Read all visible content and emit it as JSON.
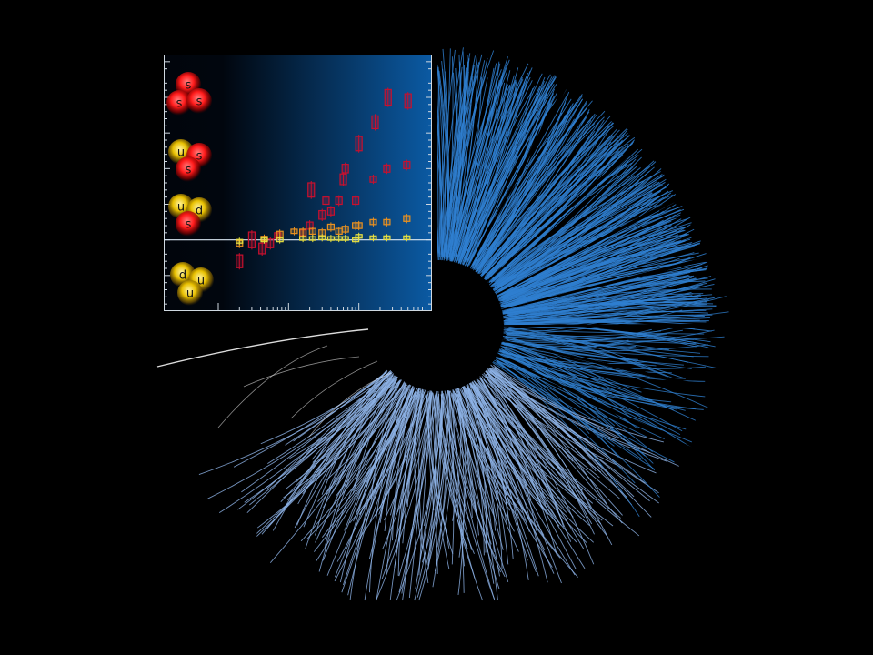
{
  "colors": {
    "background": "#000000",
    "track_fan": "#2f7fd0",
    "track_lower": "#8fb4e8",
    "track_white": "#e8e8e8",
    "plot_dark": "#01050c",
    "plot_light": "#0b5aa3",
    "baseline": "#d9e6f2",
    "series_strange": "#c8102e",
    "series_orange": "#e89020",
    "series_yellow": "#e8e040",
    "baryon_red": "#ff2020",
    "baryon_yellow": "#e8c000"
  },
  "baryons": [
    {
      "name": "sss",
      "quarks": [
        "s",
        "s",
        "s"
      ],
      "colors": [
        "red",
        "red",
        "red"
      ]
    },
    {
      "name": "uss",
      "quarks": [
        "u",
        "s",
        "s"
      ],
      "colors": [
        "yellow",
        "red",
        "red"
      ]
    },
    {
      "name": "uds",
      "quarks": [
        "u",
        "d",
        "s"
      ],
      "colors": [
        "yellow",
        "yellow",
        "red"
      ]
    },
    {
      "name": "udu",
      "quarks": [
        "d",
        "u",
        "u"
      ],
      "colors": [
        "yellow",
        "yellow",
        "yellow"
      ]
    }
  ],
  "chart_data": {
    "type": "scatter",
    "title": "",
    "xlabel": "",
    "ylabel": "",
    "x_scale": "log",
    "xlim": [
      1,
      1000
    ],
    "ylim": [
      -1.0,
      2.6
    ],
    "grid": false,
    "baseline_y": 0,
    "series": [
      {
        "color": "#c8102e",
        "points": [
          {
            "x": 2.0,
            "y": -0.3,
            "h": 0.18
          },
          {
            "x": 3.0,
            "y": 0.0,
            "h": 0.22
          },
          {
            "x": 4.2,
            "y": -0.12,
            "h": 0.15
          },
          {
            "x": 5.5,
            "y": -0.05,
            "h": 0.12
          },
          {
            "x": 7.0,
            "y": 0.06,
            "h": 0.08
          },
          {
            "x": 16,
            "y": 0.1,
            "h": 0.08
          },
          {
            "x": 20,
            "y": 0.2,
            "h": 0.1
          },
          {
            "x": 21,
            "y": 0.7,
            "h": 0.2
          },
          {
            "x": 30,
            "y": 0.35,
            "h": 0.12
          },
          {
            "x": 34,
            "y": 0.55,
            "h": 0.1
          },
          {
            "x": 40,
            "y": 0.4,
            "h": 0.1
          },
          {
            "x": 52,
            "y": 0.55,
            "h": 0.1
          },
          {
            "x": 60,
            "y": 0.85,
            "h": 0.15
          },
          {
            "x": 64,
            "y": 1.0,
            "h": 0.12
          },
          {
            "x": 90,
            "y": 0.55,
            "h": 0.1
          },
          {
            "x": 100,
            "y": 1.35,
            "h": 0.2
          },
          {
            "x": 160,
            "y": 0.85,
            "h": 0.08
          },
          {
            "x": 170,
            "y": 1.65,
            "h": 0.18
          },
          {
            "x": 250,
            "y": 1.0,
            "h": 0.1
          },
          {
            "x": 260,
            "y": 2.0,
            "h": 0.22
          },
          {
            "x": 480,
            "y": 1.05,
            "h": 0.1
          },
          {
            "x": 500,
            "y": 1.95,
            "h": 0.2
          }
        ]
      },
      {
        "color": "#e89020",
        "points": [
          {
            "x": 2.0,
            "y": -0.05,
            "h": 0.08
          },
          {
            "x": 4.5,
            "y": 0.02,
            "h": 0.06
          },
          {
            "x": 7.5,
            "y": 0.08,
            "h": 0.08
          },
          {
            "x": 12,
            "y": 0.12,
            "h": 0.06
          },
          {
            "x": 16,
            "y": 0.1,
            "h": 0.1
          },
          {
            "x": 22,
            "y": 0.12,
            "h": 0.08
          },
          {
            "x": 30,
            "y": 0.1,
            "h": 0.08
          },
          {
            "x": 40,
            "y": 0.18,
            "h": 0.08
          },
          {
            "x": 52,
            "y": 0.12,
            "h": 0.08
          },
          {
            "x": 64,
            "y": 0.15,
            "h": 0.08
          },
          {
            "x": 90,
            "y": 0.2,
            "h": 0.08
          },
          {
            "x": 100,
            "y": 0.2,
            "h": 0.08
          },
          {
            "x": 160,
            "y": 0.25,
            "h": 0.07
          },
          {
            "x": 250,
            "y": 0.25,
            "h": 0.07
          },
          {
            "x": 480,
            "y": 0.3,
            "h": 0.08
          }
        ]
      },
      {
        "color": "#e8e040",
        "points": [
          {
            "x": 2.0,
            "y": -0.02,
            "h": 0.05
          },
          {
            "x": 4.5,
            "y": 0.0,
            "h": 0.04
          },
          {
            "x": 7.5,
            "y": 0.0,
            "h": 0.04
          },
          {
            "x": 16,
            "y": 0.02,
            "h": 0.04
          },
          {
            "x": 22,
            "y": 0.02,
            "h": 0.04
          },
          {
            "x": 30,
            "y": 0.03,
            "h": 0.04
          },
          {
            "x": 40,
            "y": 0.02,
            "h": 0.04
          },
          {
            "x": 52,
            "y": 0.02,
            "h": 0.04
          },
          {
            "x": 64,
            "y": 0.02,
            "h": 0.04
          },
          {
            "x": 90,
            "y": 0.0,
            "h": 0.04
          },
          {
            "x": 100,
            "y": 0.05,
            "h": 0.04
          },
          {
            "x": 160,
            "y": 0.03,
            "h": 0.03
          },
          {
            "x": 250,
            "y": 0.03,
            "h": 0.03
          },
          {
            "x": 480,
            "y": 0.03,
            "h": 0.03
          }
        ]
      }
    ]
  }
}
